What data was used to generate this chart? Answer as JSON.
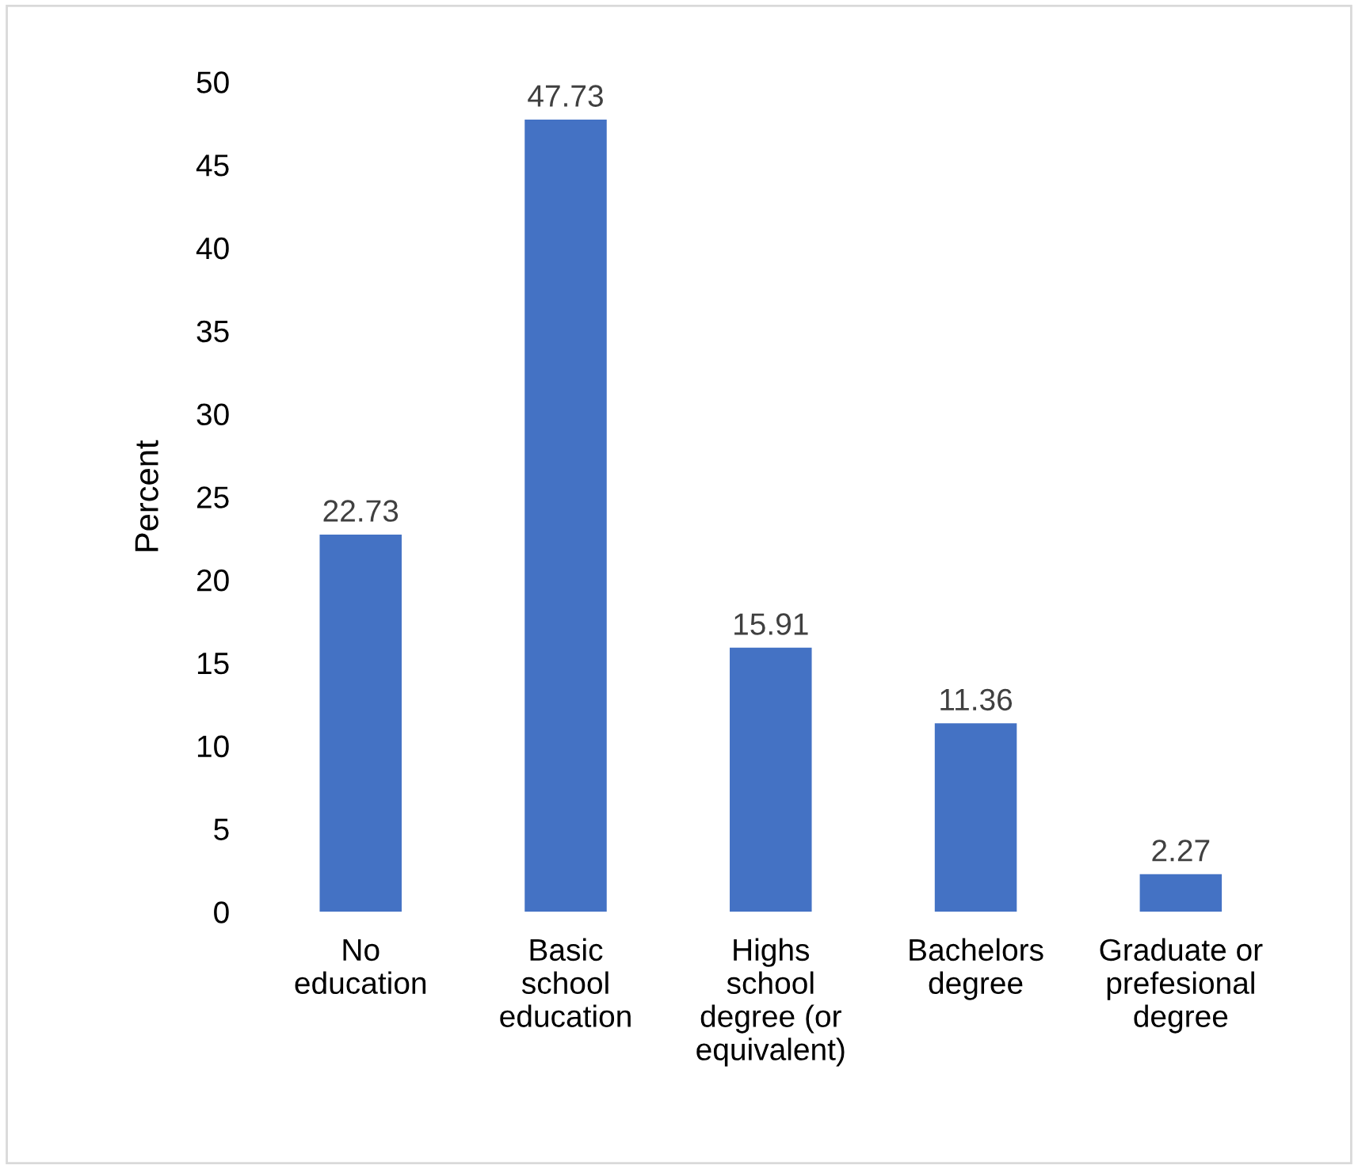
{
  "chart_data": {
    "type": "bar",
    "ylabel": "Percent",
    "categories": [
      "No education",
      "Basic school education",
      "Highs school degree (or equivalent)",
      "Bachelors degree",
      "Graduate or prefesional degree"
    ],
    "values": [
      22.73,
      47.73,
      15.91,
      11.36,
      2.27
    ],
    "color": "#4472c4",
    "ylim": [
      0,
      50
    ],
    "yticks": [
      0,
      5,
      10,
      15,
      20,
      25,
      30,
      35,
      40,
      45,
      50
    ],
    "data_labels": true,
    "grid": false,
    "legend": false
  }
}
